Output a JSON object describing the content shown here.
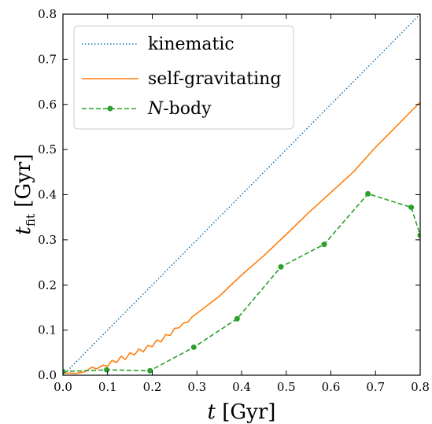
{
  "chart_data": {
    "type": "line",
    "xlabel": "t [Gyr]",
    "ylabel": "t_fit [Gyr]",
    "xlim": [
      0.0,
      0.8
    ],
    "ylim": [
      0.0,
      0.8
    ],
    "xticks": [
      "0.0",
      "0.1",
      "0.2",
      "0.3",
      "0.4",
      "0.5",
      "0.6",
      "0.7",
      "0.8"
    ],
    "yticks": [
      "0.0",
      "0.1",
      "0.2",
      "0.3",
      "0.4",
      "0.5",
      "0.6",
      "0.7",
      "0.8"
    ],
    "legend_position": "top-left",
    "series": [
      {
        "name": "kinematic",
        "color": "#1f77b4",
        "style": "dotted",
        "x": [
          0.0,
          0.8
        ],
        "y": [
          0.0,
          0.8
        ]
      },
      {
        "name": "self-gravitating",
        "color": "#ff7f0e",
        "style": "solid",
        "x": [
          0.0,
          0.03,
          0.05,
          0.065,
          0.075,
          0.09,
          0.1,
          0.11,
          0.12,
          0.13,
          0.14,
          0.15,
          0.16,
          0.17,
          0.18,
          0.19,
          0.2,
          0.21,
          0.22,
          0.23,
          0.24,
          0.25,
          0.26,
          0.27,
          0.28,
          0.29,
          0.3,
          0.35,
          0.4,
          0.45,
          0.5,
          0.55,
          0.6,
          0.65,
          0.7,
          0.75,
          0.8
        ],
        "y": [
          0.005,
          0.004,
          0.008,
          0.018,
          0.014,
          0.022,
          0.02,
          0.033,
          0.028,
          0.042,
          0.035,
          0.05,
          0.045,
          0.058,
          0.052,
          0.066,
          0.063,
          0.078,
          0.074,
          0.09,
          0.088,
          0.104,
          0.105,
          0.116,
          0.118,
          0.13,
          0.137,
          0.175,
          0.222,
          0.265,
          0.312,
          0.36,
          0.405,
          0.45,
          0.505,
          0.555,
          0.605
        ]
      },
      {
        "name": "N-body",
        "color": "#2ca02c",
        "style": "dashed",
        "markers": true,
        "x": [
          0.0,
          0.098,
          0.195,
          0.293,
          0.39,
          0.488,
          0.585,
          0.683,
          0.78,
          0.8
        ],
        "y": [
          0.008,
          0.012,
          0.01,
          0.062,
          0.125,
          0.24,
          0.29,
          0.402,
          0.372,
          0.31
        ]
      }
    ]
  }
}
